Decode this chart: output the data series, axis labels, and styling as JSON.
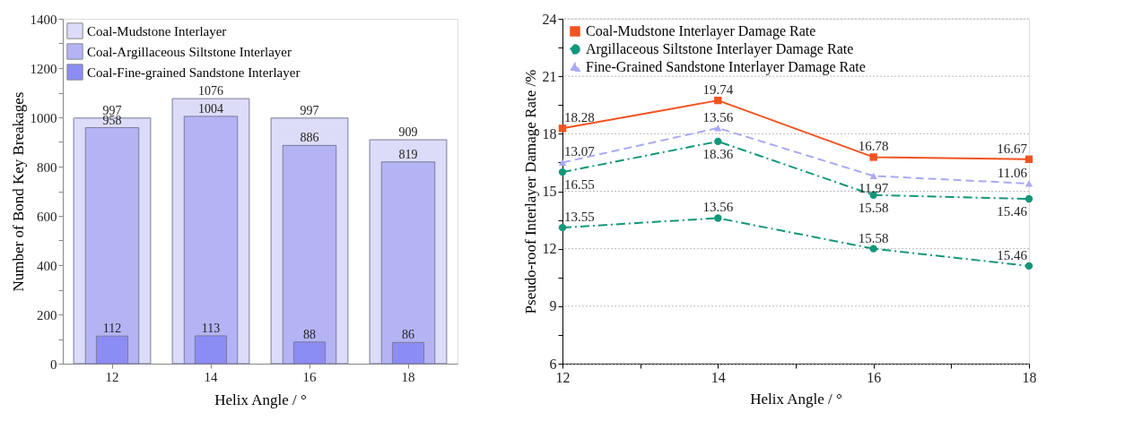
{
  "chart_data": [
    {
      "type": "bar",
      "xlabel": "Helix Angle / °",
      "ylabel": "Number of Bond Key Breakages",
      "categories": [
        "12",
        "14",
        "16",
        "18"
      ],
      "series": [
        {
          "name": "Coal-Mudstone Interlayer",
          "color": "#dcdcf8",
          "values": [
            997,
            1076,
            997,
            909
          ]
        },
        {
          "name": "Coal-Argillaceous Siltstone Interlayer",
          "color": "#b4b4f5",
          "values": [
            958,
            1004,
            886,
            819
          ]
        },
        {
          "name": "Coal-Fine-grained Sandstone Interlayer",
          "color": "#8c8cf5",
          "values": [
            112,
            113,
            88,
            86
          ]
        }
      ],
      "ylim": [
        0,
        1400
      ],
      "yticks": [
        0,
        {
          "value": 100,
          "label": null
        },
        200,
        {
          "value": 300,
          "label": null
        },
        400,
        {
          "value": 500,
          "label": null
        },
        600,
        {
          "value": 700,
          "label": null
        },
        800,
        {
          "value": 900,
          "label": null
        },
        1000,
        {
          "value": 1100,
          "label": null
        },
        1200,
        {
          "value": 1300,
          "label": null
        },
        1400
      ],
      "data_labels": true,
      "legend": "top left",
      "grid": false
    },
    {
      "type": "line",
      "xlabel": "Helix Angle / °",
      "ylabel": "Pseudo-roof Interlayer Damage Rate /%",
      "x": [
        12,
        14,
        16,
        18
      ],
      "series": [
        {
          "name": "Coal-Mudstone Interlayer Damage Rate",
          "color": "#f2521f",
          "marker": "square",
          "line_style": "solid",
          "values": [
            18.28,
            19.74,
            16.78,
            16.67
          ]
        },
        {
          "name": "Argillaceous Siltstone Interlayer Damage Rate",
          "color": "#12977a",
          "marker": "circle",
          "line_style": "dashdot",
          "values": [
            16.0,
            17.6,
            14.8,
            14.6
          ]
        },
        {
          "name": "Fine-Grained Sandstone Interlayer Damage Rate",
          "color": "#a9a9f7",
          "marker": "triangle",
          "line_style": "dashed",
          "values": [
            16.5,
            18.3,
            15.8,
            15.4
          ]
        },
        {
          "color": "#12977a",
          "marker": "circle",
          "line_style": "dashdot",
          "values": [
            13.1,
            13.6,
            12.0,
            11.1
          ]
        }
      ],
      "annotations": [
        {
          "text": "18.28",
          "x": 12,
          "y": 18.28
        },
        {
          "text": "19.74",
          "x": 14,
          "y": 19.74
        },
        {
          "text": "16.78",
          "x": 16,
          "y": 16.78
        },
        {
          "text": "16.67",
          "x": 18,
          "y": 16.67
        },
        {
          "text": "16.55",
          "x": 12,
          "y": 16.0
        },
        {
          "text": "18.36",
          "x": 14,
          "y": 17.6
        },
        {
          "text": "15.58",
          "x": 16,
          "y": 14.8
        },
        {
          "text": "15.46",
          "x": 18,
          "y": 14.6
        },
        {
          "text": "13.07",
          "x": 12,
          "y": 16.5
        },
        {
          "text": "13.56",
          "x": 14,
          "y": 18.3
        },
        {
          "text": "11.97",
          "x": 16,
          "y": 15.8
        },
        {
          "text": "11.06",
          "x": 18,
          "y": 15.4
        },
        {
          "text": "13.55",
          "x": 12,
          "y": 13.1
        },
        {
          "text": "13.56",
          "x": 14,
          "y": 13.6
        },
        {
          "text": "15.58",
          "x": 16,
          "y": 12.0
        },
        {
          "text": "15.46",
          "x": 18,
          "y": 11.1
        }
      ],
      "xlim": [
        12,
        18
      ],
      "xticks": [
        12,
        {
          "value": 13,
          "label": null
        },
        14,
        {
          "value": 15,
          "label": null
        },
        16,
        {
          "value": 17,
          "label": null
        },
        18
      ],
      "ylim": [
        6,
        24
      ],
      "yticks": [
        6,
        {
          "value": 7.5,
          "label": null
        },
        9,
        {
          "value": 10.5,
          "label": null
        },
        12,
        {
          "value": 13.5,
          "label": null
        },
        15,
        {
          "value": 16.5,
          "label": null
        },
        18,
        {
          "value": 19.5,
          "label": null
        },
        21,
        {
          "value": 22.5,
          "label": null
        },
        24
      ],
      "grid": "y",
      "legend": "top left"
    }
  ]
}
